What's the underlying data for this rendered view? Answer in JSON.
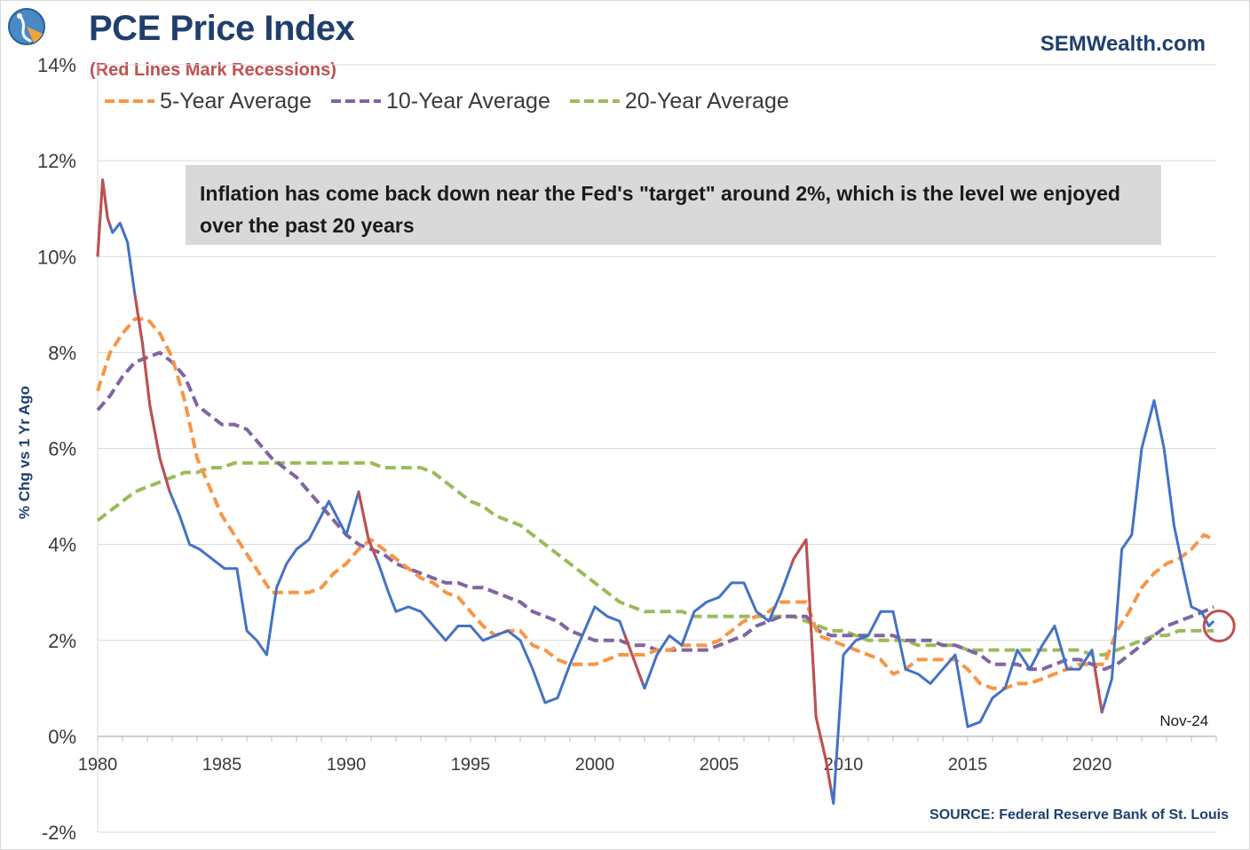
{
  "header": {
    "title": "PCE Price Index",
    "subtitle": "(Red Lines Mark Recessions)",
    "brand": "SEMWealth.com",
    "source": "SOURCE:  Federal Reserve Bank of St. Louis"
  },
  "colors": {
    "pce": "#4472c4",
    "recession": "#c0504d",
    "avg5": "#f79646",
    "avg10": "#8064a2",
    "avg20": "#9bbb59",
    "title": "#1f3f6e",
    "marker": "#c0504d"
  },
  "legend": [
    {
      "label": "5-Year Average",
      "color": "#f79646"
    },
    {
      "label": "10-Year Average",
      "color": "#8064a2"
    },
    {
      "label": "20-Year Average",
      "color": "#9bbb59"
    }
  ],
  "annotation": "Inflation has come back down near the Fed's \"target\" around 2%, which is the level we enjoyed over the past 20 years",
  "chart_data": {
    "type": "line",
    "title": "PCE Price Index",
    "xlabel": "",
    "ylabel": "% Chg vs 1 Yr Ago",
    "xlim": [
      1980,
      2025
    ],
    "ylim": [
      -2,
      14
    ],
    "x_ticks": [
      1980,
      1985,
      1990,
      1995,
      2000,
      2005,
      2010,
      2015,
      2020
    ],
    "y_ticks": [
      "-2%",
      "0%",
      "2%",
      "4%",
      "6%",
      "8%",
      "10%",
      "12%",
      "14%"
    ],
    "last_point_label": "Nov-24",
    "recessions": [
      [
        1980.0,
        1980.5
      ],
      [
        1981.5,
        1982.9
      ],
      [
        1990.5,
        1991.2
      ],
      [
        2001.2,
        2001.9
      ],
      [
        2007.9,
        2009.5
      ],
      [
        2020.1,
        2020.4
      ]
    ],
    "series": [
      {
        "name": "PCE Price Index",
        "color": "#4472c4",
        "x": [
          1980.0,
          1980.2,
          1980.4,
          1980.6,
          1980.9,
          1981.2,
          1981.5,
          1981.8,
          1982.1,
          1982.5,
          1982.9,
          1983.3,
          1983.7,
          1984.1,
          1984.6,
          1985.1,
          1985.6,
          1986.0,
          1986.4,
          1986.8,
          1987.2,
          1987.6,
          1988.0,
          1988.5,
          1989.0,
          1989.3,
          1989.7,
          1990.0,
          1990.5,
          1990.9,
          1991.3,
          1991.7,
          1992.0,
          1992.5,
          1993.0,
          1993.5,
          1994.0,
          1994.5,
          1995.0,
          1995.5,
          1996.0,
          1996.5,
          1997.0,
          1997.5,
          1998.0,
          1998.5,
          1999.0,
          1999.5,
          2000.0,
          2000.5,
          2001.0,
          2001.5,
          2002.0,
          2002.5,
          2003.0,
          2003.5,
          2004.0,
          2004.5,
          2005.0,
          2005.5,
          2006.0,
          2006.5,
          2007.0,
          2007.5,
          2008.0,
          2008.5,
          2008.9,
          2009.3,
          2009.6,
          2010.0,
          2010.5,
          2011.0,
          2011.5,
          2012.0,
          2012.5,
          2013.0,
          2013.5,
          2014.0,
          2014.5,
          2015.0,
          2015.5,
          2016.0,
          2016.5,
          2017.0,
          2017.5,
          2018.0,
          2018.5,
          2019.0,
          2019.5,
          2020.0,
          2020.4,
          2020.8,
          2021.2,
          2021.6,
          2022.0,
          2022.5,
          2022.9,
          2023.3,
          2023.7,
          2024.0,
          2024.4,
          2024.7,
          2024.9
        ],
        "values": [
          10.0,
          11.6,
          10.8,
          10.5,
          10.7,
          10.3,
          9.2,
          8.2,
          6.9,
          5.8,
          5.1,
          4.6,
          4.0,
          3.9,
          3.7,
          3.5,
          3.5,
          2.2,
          2.0,
          1.7,
          3.1,
          3.6,
          3.9,
          4.1,
          4.6,
          4.9,
          4.5,
          4.2,
          5.1,
          4.1,
          3.6,
          3.0,
          2.6,
          2.7,
          2.6,
          2.3,
          2.0,
          2.3,
          2.3,
          2.0,
          2.1,
          2.2,
          2.0,
          1.4,
          0.7,
          0.8,
          1.5,
          2.1,
          2.7,
          2.5,
          2.4,
          1.7,
          1.0,
          1.7,
          2.1,
          1.9,
          2.6,
          2.8,
          2.9,
          3.2,
          3.2,
          2.6,
          2.4,
          3.0,
          3.7,
          4.1,
          0.4,
          -0.5,
          -1.4,
          1.7,
          2.0,
          2.1,
          2.6,
          2.6,
          1.4,
          1.3,
          1.1,
          1.4,
          1.7,
          0.2,
          0.3,
          0.8,
          1.0,
          1.8,
          1.4,
          1.9,
          2.3,
          1.4,
          1.4,
          1.8,
          0.5,
          1.2,
          3.9,
          4.2,
          6.0,
          7.0,
          6.0,
          4.4,
          3.4,
          2.7,
          2.6,
          2.3,
          2.4
        ]
      },
      {
        "name": "5-Year Average",
        "color": "#f79646",
        "x": [
          1980.0,
          1980.5,
          1981.0,
          1981.5,
          1982.0,
          1982.5,
          1983.0,
          1983.5,
          1984.0,
          1984.5,
          1985.0,
          1985.5,
          1986.0,
          1986.5,
          1987.0,
          1987.5,
          1988.0,
          1988.5,
          1989.0,
          1989.5,
          1990.0,
          1990.5,
          1991.0,
          1991.5,
          1992.0,
          1992.5,
          1993.0,
          1993.5,
          1994.0,
          1994.5,
          1995.0,
          1995.5,
          1996.0,
          1996.5,
          1997.0,
          1997.5,
          1998.0,
          1998.5,
          1999.0,
          1999.5,
          2000.0,
          2000.5,
          2001.0,
          2001.5,
          2002.0,
          2002.5,
          2003.0,
          2003.5,
          2004.0,
          2004.5,
          2005.0,
          2005.5,
          2006.0,
          2006.5,
          2007.0,
          2007.5,
          2008.0,
          2008.5,
          2009.0,
          2009.5,
          2010.0,
          2010.5,
          2011.0,
          2011.5,
          2012.0,
          2012.5,
          2013.0,
          2013.5,
          2014.0,
          2014.5,
          2015.0,
          2015.5,
          2016.0,
          2016.5,
          2017.0,
          2017.5,
          2018.0,
          2018.5,
          2019.0,
          2019.5,
          2020.0,
          2020.5,
          2021.0,
          2021.5,
          2022.0,
          2022.5,
          2023.0,
          2023.5,
          2024.0,
          2024.5,
          2024.9
        ],
        "values": [
          7.2,
          8.0,
          8.4,
          8.7,
          8.7,
          8.4,
          7.9,
          7.0,
          5.8,
          5.2,
          4.6,
          4.2,
          3.8,
          3.4,
          3.0,
          3.0,
          3.0,
          3.0,
          3.1,
          3.4,
          3.6,
          3.9,
          4.1,
          3.9,
          3.7,
          3.5,
          3.3,
          3.2,
          3.0,
          2.9,
          2.6,
          2.3,
          2.1,
          2.2,
          2.2,
          1.9,
          1.8,
          1.6,
          1.5,
          1.5,
          1.5,
          1.6,
          1.7,
          1.7,
          1.7,
          1.8,
          1.8,
          1.9,
          1.9,
          1.9,
          2.0,
          2.2,
          2.4,
          2.5,
          2.6,
          2.8,
          2.8,
          2.8,
          2.1,
          2.0,
          1.9,
          1.8,
          1.7,
          1.6,
          1.3,
          1.4,
          1.6,
          1.6,
          1.6,
          1.6,
          1.4,
          1.1,
          1.0,
          1.0,
          1.1,
          1.1,
          1.2,
          1.3,
          1.4,
          1.5,
          1.5,
          1.5,
          2.2,
          2.6,
          3.1,
          3.4,
          3.6,
          3.7,
          3.9,
          4.2,
          4.1
        ]
      },
      {
        "name": "10-Year Average",
        "color": "#8064a2",
        "x": [
          1980.0,
          1980.5,
          1981.0,
          1981.5,
          1982.0,
          1982.5,
          1983.0,
          1983.5,
          1984.0,
          1984.5,
          1985.0,
          1985.5,
          1986.0,
          1986.5,
          1987.0,
          1987.5,
          1988.0,
          1988.5,
          1989.0,
          1989.5,
          1990.0,
          1990.5,
          1991.0,
          1991.5,
          1992.0,
          1992.5,
          1993.0,
          1993.5,
          1994.0,
          1994.5,
          1995.0,
          1995.5,
          1996.0,
          1996.5,
          1997.0,
          1997.5,
          1998.0,
          1998.5,
          1999.0,
          1999.5,
          2000.0,
          2000.5,
          2001.0,
          2001.5,
          2002.0,
          2002.5,
          2003.0,
          2003.5,
          2004.0,
          2004.5,
          2005.0,
          2005.5,
          2006.0,
          2006.5,
          2007.0,
          2007.5,
          2008.0,
          2008.5,
          2009.0,
          2009.5,
          2010.0,
          2010.5,
          2011.0,
          2011.5,
          2012.0,
          2012.5,
          2013.0,
          2013.5,
          2014.0,
          2014.5,
          2015.0,
          2015.5,
          2016.0,
          2016.5,
          2017.0,
          2017.5,
          2018.0,
          2018.5,
          2019.0,
          2019.5,
          2020.0,
          2020.5,
          2021.0,
          2021.5,
          2022.0,
          2022.5,
          2023.0,
          2023.5,
          2024.0,
          2024.5,
          2024.9
        ],
        "values": [
          6.8,
          7.1,
          7.5,
          7.8,
          7.9,
          8.0,
          7.8,
          7.5,
          6.9,
          6.7,
          6.5,
          6.5,
          6.4,
          6.1,
          5.8,
          5.6,
          5.4,
          5.1,
          4.8,
          4.5,
          4.2,
          4.0,
          3.9,
          3.8,
          3.6,
          3.5,
          3.4,
          3.3,
          3.2,
          3.2,
          3.1,
          3.1,
          3.0,
          2.9,
          2.8,
          2.6,
          2.5,
          2.4,
          2.2,
          2.1,
          2.0,
          2.0,
          2.0,
          1.9,
          1.9,
          1.8,
          1.8,
          1.8,
          1.8,
          1.8,
          1.9,
          2.0,
          2.1,
          2.3,
          2.4,
          2.5,
          2.5,
          2.5,
          2.2,
          2.1,
          2.1,
          2.1,
          2.1,
          2.1,
          2.1,
          2.0,
          2.0,
          2.0,
          1.9,
          1.9,
          1.8,
          1.7,
          1.5,
          1.5,
          1.5,
          1.4,
          1.4,
          1.5,
          1.6,
          1.6,
          1.5,
          1.4,
          1.5,
          1.7,
          1.9,
          2.1,
          2.3,
          2.4,
          2.5,
          2.6,
          2.7
        ]
      },
      {
        "name": "20-Year Average",
        "color": "#9bbb59",
        "x": [
          1980.0,
          1980.5,
          1981.0,
          1981.5,
          1982.0,
          1982.5,
          1983.0,
          1983.5,
          1984.0,
          1984.5,
          1985.0,
          1985.5,
          1986.0,
          1986.5,
          1987.0,
          1987.5,
          1988.0,
          1988.5,
          1989.0,
          1989.5,
          1990.0,
          1990.5,
          1991.0,
          1991.5,
          1992.0,
          1992.5,
          1993.0,
          1993.5,
          1994.0,
          1994.5,
          1995.0,
          1995.5,
          1996.0,
          1996.5,
          1997.0,
          1997.5,
          1998.0,
          1998.5,
          1999.0,
          1999.5,
          2000.0,
          2000.5,
          2001.0,
          2001.5,
          2002.0,
          2002.5,
          2003.0,
          2003.5,
          2004.0,
          2004.5,
          2005.0,
          2005.5,
          2006.0,
          2006.5,
          2007.0,
          2007.5,
          2008.0,
          2008.5,
          2009.0,
          2009.5,
          2010.0,
          2010.5,
          2011.0,
          2011.5,
          2012.0,
          2012.5,
          2013.0,
          2013.5,
          2014.0,
          2014.5,
          2015.0,
          2015.5,
          2016.0,
          2016.5,
          2017.0,
          2017.5,
          2018.0,
          2018.5,
          2019.0,
          2019.5,
          2020.0,
          2020.5,
          2021.0,
          2021.5,
          2022.0,
          2022.5,
          2023.0,
          2023.5,
          2024.0,
          2024.5,
          2024.9
        ],
        "values": [
          4.5,
          4.7,
          4.9,
          5.1,
          5.2,
          5.3,
          5.4,
          5.5,
          5.5,
          5.6,
          5.6,
          5.7,
          5.7,
          5.7,
          5.7,
          5.7,
          5.7,
          5.7,
          5.7,
          5.7,
          5.7,
          5.7,
          5.7,
          5.6,
          5.6,
          5.6,
          5.6,
          5.5,
          5.3,
          5.1,
          4.9,
          4.8,
          4.6,
          4.5,
          4.4,
          4.2,
          4.0,
          3.8,
          3.6,
          3.4,
          3.2,
          3.0,
          2.8,
          2.7,
          2.6,
          2.6,
          2.6,
          2.6,
          2.5,
          2.5,
          2.5,
          2.5,
          2.5,
          2.5,
          2.5,
          2.5,
          2.5,
          2.4,
          2.3,
          2.2,
          2.2,
          2.1,
          2.0,
          2.0,
          2.0,
          2.0,
          1.9,
          1.9,
          1.9,
          1.9,
          1.8,
          1.8,
          1.8,
          1.8,
          1.8,
          1.8,
          1.8,
          1.8,
          1.8,
          1.8,
          1.7,
          1.7,
          1.8,
          1.9,
          2.0,
          2.1,
          2.1,
          2.2,
          2.2,
          2.2,
          2.2
        ]
      }
    ]
  }
}
